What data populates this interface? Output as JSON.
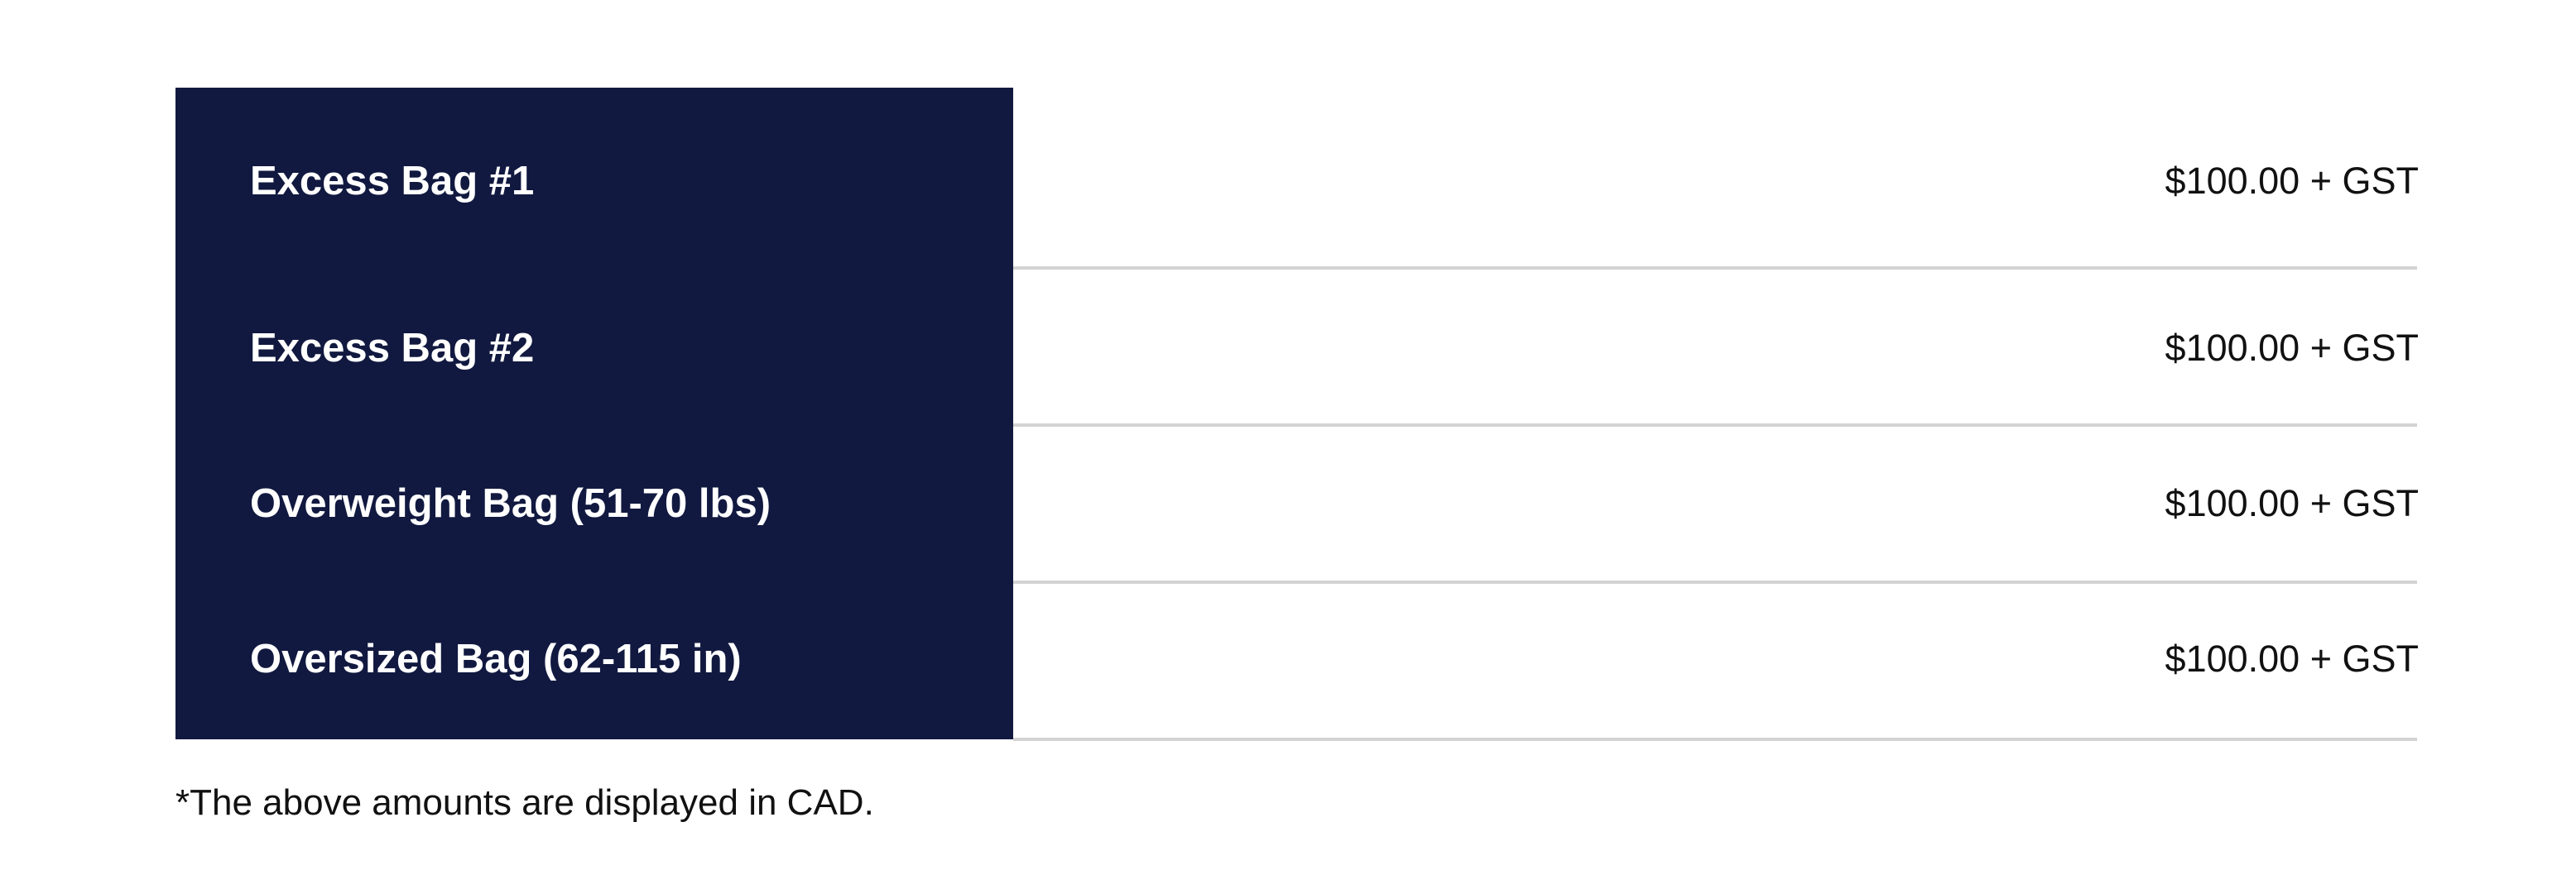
{
  "fees": [
    {
      "label": "Excess Bag #1",
      "price": "$100.00 + GST"
    },
    {
      "label": "Excess Bag #2",
      "price": "$100.00 + GST"
    },
    {
      "label": "Overweight Bag (51-70 lbs)",
      "price": "$100.00 + GST"
    },
    {
      "label": "Oversized Bag (62-115 in)",
      "price": "$100.00 + GST"
    }
  ],
  "footnote": "*The above amounts are displayed in CAD.",
  "colors": {
    "panel": "#111940",
    "divider": "#d3d3d3"
  }
}
